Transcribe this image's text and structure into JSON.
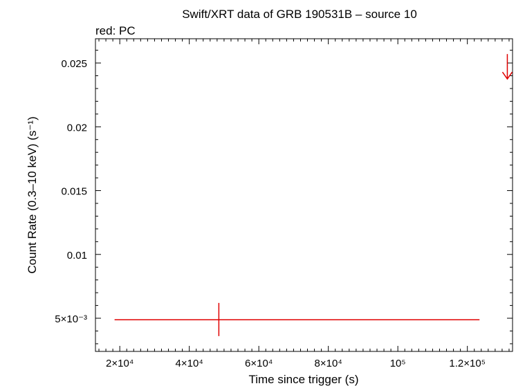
{
  "chart_data": {
    "type": "scatter",
    "title": "Swift/XRT data of GRB 190531B – source 10",
    "subtitle": "red: PC",
    "xlabel": "Time since trigger (s)",
    "ylabel": "Count Rate (0.3–10 keV) (s⁻¹)",
    "xlim": [
      13000,
      133000
    ],
    "ylim": [
      0.0024,
      0.0269
    ],
    "x_scale": "linear",
    "y_scale": "linear",
    "x_ticks": [
      {
        "value": 20000,
        "label": "2×10⁴"
      },
      {
        "value": 40000,
        "label": "4×10⁴"
      },
      {
        "value": 60000,
        "label": "6×10⁴"
      },
      {
        "value": 80000,
        "label": "8×10⁴"
      },
      {
        "value": 100000,
        "label": "10⁵"
      },
      {
        "value": 120000,
        "label": "1.2×10⁵"
      }
    ],
    "y_ticks": [
      {
        "value": 0.005,
        "label": "5×10⁻³"
      },
      {
        "value": 0.01,
        "label": "0.01"
      },
      {
        "value": 0.015,
        "label": "0.015"
      },
      {
        "value": 0.02,
        "label": "0.02"
      },
      {
        "value": 0.025,
        "label": "0.025"
      }
    ],
    "series": [
      {
        "name": "PC",
        "color": "#e00000",
        "points": [
          {
            "x": 48500,
            "y": 0.00488,
            "x_lo": 18500,
            "x_hi": 123500,
            "y_lo": 0.0036,
            "y_hi": 0.0062
          }
        ],
        "upper_limits": [
          {
            "x": 131500,
            "y": 0.0257
          }
        ]
      }
    ],
    "grid": false,
    "legend": "none"
  }
}
